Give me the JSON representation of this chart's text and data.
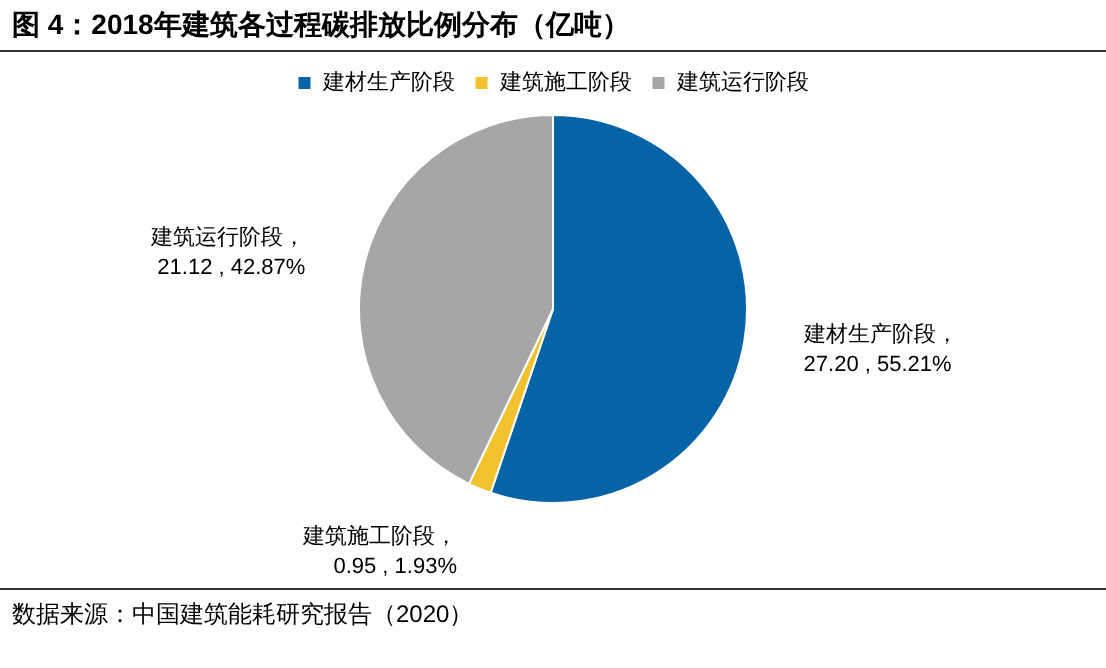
{
  "chart_data": {
    "type": "pie",
    "title": "图 4：2018年建筑各过程碳排放比例分布（亿吨）",
    "categories": [
      "建材生产阶段",
      "建筑施工阶段",
      "建筑运行阶段"
    ],
    "values": [
      27.2,
      0.95,
      21.12
    ],
    "colors": [
      "#0563a6",
      "#f2c12e",
      "#a6a6a6"
    ],
    "value_labels": [
      "建材生产阶段，\n27.20 , 55.21%",
      "建筑施工阶段，\n0.95 , 1.93%",
      "建筑运行阶段，\n21.12 , 42.87%"
    ],
    "legend": "top",
    "annotations": [
      "数据来源：中国建筑能耗研究报告（2020）"
    ]
  }
}
